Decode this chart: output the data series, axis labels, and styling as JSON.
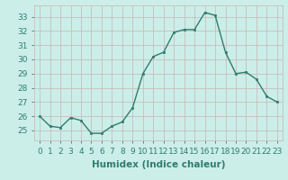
{
  "xlabel": "Humidex (Indice chaleur)",
  "x": [
    0,
    1,
    2,
    3,
    4,
    5,
    6,
    7,
    8,
    9,
    10,
    11,
    12,
    13,
    14,
    15,
    16,
    17,
    18,
    19,
    20,
    21,
    22,
    23
  ],
  "y": [
    26.0,
    25.3,
    25.2,
    25.9,
    25.7,
    24.8,
    24.8,
    25.3,
    25.6,
    26.6,
    29.0,
    30.2,
    30.5,
    31.9,
    32.1,
    32.1,
    33.3,
    33.1,
    30.5,
    29.0,
    29.1,
    28.6,
    27.4,
    27.0
  ],
  "line_color": "#2e7d6e",
  "marker": "s",
  "marker_size": 2,
  "bg_color": "#cceee8",
  "grid_color": "#c8bebe",
  "axis_color": "#2e7d6e",
  "ylim": [
    24.3,
    33.8
  ],
  "yticks": [
    25,
    26,
    27,
    28,
    29,
    30,
    31,
    32,
    33
  ],
  "xticks": [
    0,
    1,
    2,
    3,
    4,
    5,
    6,
    7,
    8,
    9,
    10,
    11,
    12,
    13,
    14,
    15,
    16,
    17,
    18,
    19,
    20,
    21,
    22,
    23
  ],
  "tick_fontsize": 6.5,
  "label_fontsize": 7.5,
  "line_width": 1.0
}
